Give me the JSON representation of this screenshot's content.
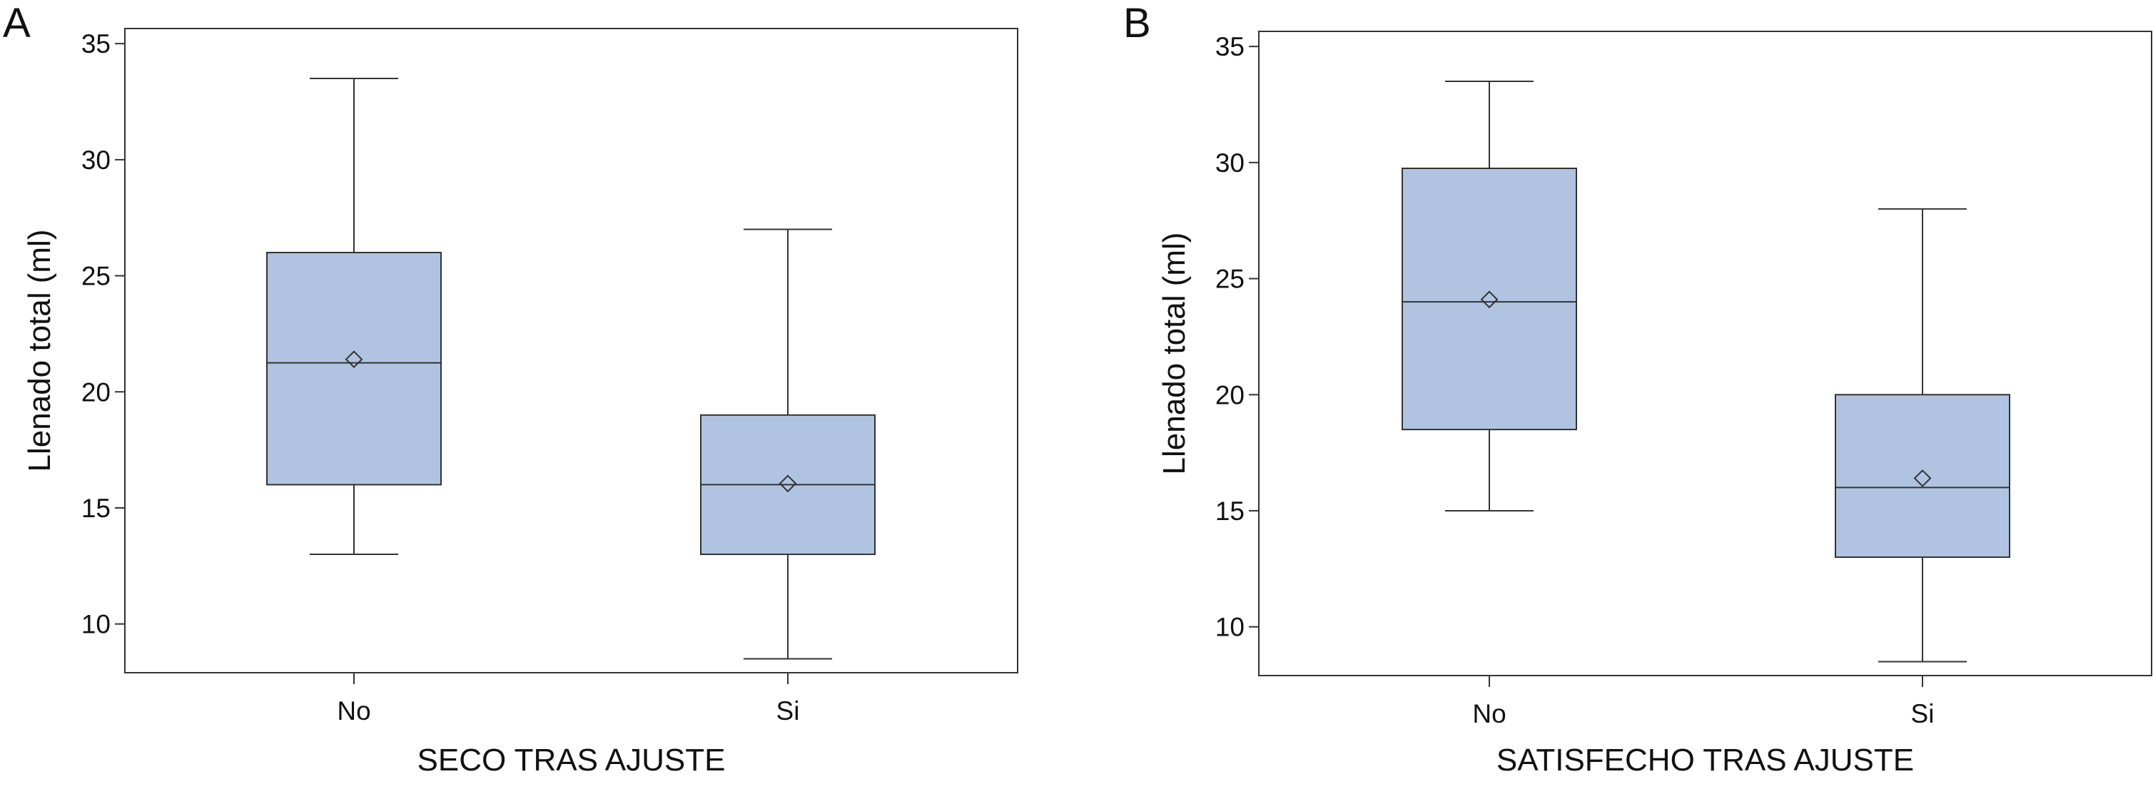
{
  "chart_data": [
    {
      "type": "box",
      "panel_label": "A",
      "xlabel": "SECO TRAS AJUSTE",
      "ylabel": "Llenado total (ml)",
      "ylim": [
        7.9,
        35.65
      ],
      "yticks": [
        10,
        15,
        20,
        25,
        30,
        35
      ],
      "categories": [
        "No",
        "Si"
      ],
      "boxes": [
        {
          "category": "No",
          "whisker_low": 13,
          "q1": 16,
          "median": 21.25,
          "mean": 21.4,
          "q3": 26,
          "whisker_high": 33.5
        },
        {
          "category": "Si",
          "whisker_low": 8.5,
          "q1": 13,
          "median": 16,
          "mean": 16.05,
          "q3": 19,
          "whisker_high": 27
        }
      ],
      "box_color": "#b0c4e2",
      "grid": false
    },
    {
      "type": "box",
      "panel_label": "B",
      "xlabel": "SATISFECHO TRAS AJUSTE",
      "ylabel": "Llenado total (ml)",
      "ylim": [
        7.9,
        35.65
      ],
      "yticks": [
        10,
        15,
        20,
        25,
        30,
        35
      ],
      "categories": [
        "No",
        "Si"
      ],
      "boxes": [
        {
          "category": "No",
          "whisker_low": 15,
          "q1": 18.5,
          "median": 24,
          "mean": 24.1,
          "q3": 29.75,
          "whisker_high": 33.5
        },
        {
          "category": "Si",
          "whisker_low": 8.5,
          "q1": 13,
          "median": 16,
          "mean": 16.4,
          "q3": 20,
          "whisker_high": 28
        }
      ],
      "box_color": "#b0c4e2",
      "grid": false
    }
  ]
}
